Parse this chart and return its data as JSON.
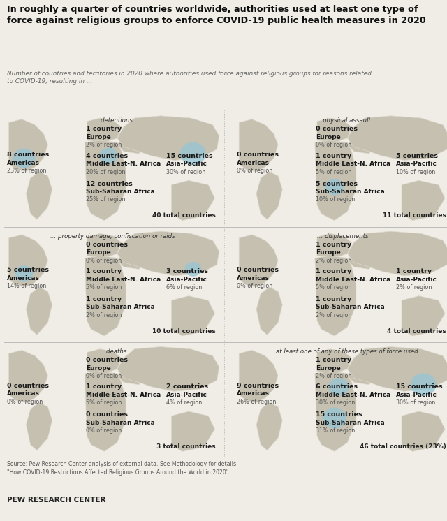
{
  "title": "In roughly a quarter of countries worldwide, authorities used at least one type of\nforce against religious groups to enforce COVID-19 public health measures in 2020",
  "subtitle": "Number of countries and territories in 2020 where authorities used force against religious groups for reasons related\nto COVID-19, resulting in ...",
  "source": "Source: Pew Research Center analysis of external data. See Methodology for details.\n\"How COVID-19 Restrictions Affected Religious Groups Around the World in 2020\"",
  "footer": "PEW RESEARCH CENTER",
  "bg_color": "#f0ede6",
  "map_bg": "#ddd9cf",
  "continent_color": "#c8c3b4",
  "bubble_color": "#92c5d8",
  "text_dark": "#1a1a1a",
  "text_gray": "#555555",
  "divider_color": "#bbbbbb",
  "panels": [
    {
      "title": "... detentions",
      "total": "40 total countries",
      "regions": [
        {
          "name": "Americas",
          "count": "8 countries",
          "pct": "23% of region",
          "bubble": true,
          "bsize": 0.12
        },
        {
          "name": "Europe",
          "count": "1 country",
          "pct": "2% of region",
          "bubble": false,
          "bsize": 0
        },
        {
          "name": "Middle East-N. Africa",
          "count": "4 countries",
          "pct": "20% of region",
          "bubble": true,
          "bsize": 0.1
        },
        {
          "name": "Asia-Pacific",
          "count": "15 countries",
          "pct": "30% of region",
          "bubble": true,
          "bsize": 0.14
        },
        {
          "name": "Sub-Saharan Africa",
          "count": "12 countries",
          "pct": "25% of region",
          "bubble": false,
          "bsize": 0
        }
      ]
    },
    {
      "title": "... physical assault",
      "total": "11 total countries",
      "regions": [
        {
          "name": "Americas",
          "count": "0 countries",
          "pct": "0% of region",
          "bubble": false,
          "bsize": 0
        },
        {
          "name": "Europe",
          "count": "0 countries",
          "pct": "0% of region",
          "bubble": false,
          "bsize": 0
        },
        {
          "name": "Middle East-N. Africa",
          "count": "1 country",
          "pct": "5% of region",
          "bubble": false,
          "bsize": 0
        },
        {
          "name": "Asia-Pacific",
          "count": "5 countries",
          "pct": "10% of region",
          "bubble": false,
          "bsize": 0
        },
        {
          "name": "Sub-Saharan Africa",
          "count": "5 countries",
          "pct": "10% of region",
          "bubble": true,
          "bsize": 0.1
        }
      ]
    },
    {
      "title": "... property damage, confiscation or raids",
      "total": "10 total countries",
      "regions": [
        {
          "name": "Americas",
          "count": "5 countries",
          "pct": "14% of region",
          "bubble": true,
          "bsize": 0.1
        },
        {
          "name": "Europe",
          "count": "0 countries",
          "pct": "0% of region",
          "bubble": false,
          "bsize": 0
        },
        {
          "name": "Middle East-N. Africa",
          "count": "1 country",
          "pct": "5% of region",
          "bubble": false,
          "bsize": 0
        },
        {
          "name": "Asia-Pacific",
          "count": "3 countries",
          "pct": "6% of region",
          "bubble": true,
          "bsize": 0.09
        },
        {
          "name": "Sub-Saharan Africa",
          "count": "1 country",
          "pct": "2% of region",
          "bubble": false,
          "bsize": 0
        }
      ]
    },
    {
      "title": "... displacements",
      "total": "4 total countries",
      "regions": [
        {
          "name": "Americas",
          "count": "0 countries",
          "pct": "0% of region",
          "bubble": false,
          "bsize": 0
        },
        {
          "name": "Europe",
          "count": "1 country",
          "pct": "2% of region",
          "bubble": false,
          "bsize": 0
        },
        {
          "name": "Middle East-N. Africa",
          "count": "1 country",
          "pct": "5% of region",
          "bubble": false,
          "bsize": 0
        },
        {
          "name": "Asia-Pacific",
          "count": "1 country",
          "pct": "2% of region",
          "bubble": false,
          "bsize": 0
        },
        {
          "name": "Sub-Saharan Africa",
          "count": "1 country",
          "pct": "2% of region",
          "bubble": false,
          "bsize": 0
        }
      ]
    },
    {
      "title": "... deaths",
      "total": "3 total countries",
      "regions": [
        {
          "name": "Americas",
          "count": "0 countries",
          "pct": "0% of region",
          "bubble": false,
          "bsize": 0
        },
        {
          "name": "Europe",
          "count": "0 countries",
          "pct": "0% of region",
          "bubble": false,
          "bsize": 0
        },
        {
          "name": "Middle East-N. Africa",
          "count": "1 country",
          "pct": "5% of region",
          "bubble": false,
          "bsize": 0
        },
        {
          "name": "Asia-Pacific",
          "count": "2 countries",
          "pct": "4% of region",
          "bubble": false,
          "bsize": 0
        },
        {
          "name": "Sub-Saharan Africa",
          "count": "0 countries",
          "pct": "0% of region",
          "bubble": false,
          "bsize": 0
        }
      ]
    },
    {
      "title": "... at least one of any of these types of force used",
      "total": "46 total countries (23%)",
      "regions": [
        {
          "name": "Americas",
          "count": "9 countries",
          "pct": "26% of region",
          "bubble": false,
          "bsize": 0
        },
        {
          "name": "Europe",
          "count": "1 country",
          "pct": "2% of region",
          "bubble": false,
          "bsize": 0
        },
        {
          "name": "Middle East-N. Africa",
          "count": "6 countries",
          "pct": "30% of region",
          "bubble": true,
          "bsize": 0.11
        },
        {
          "name": "Asia-Pacific",
          "count": "15 countries",
          "pct": "30% of region",
          "bubble": true,
          "bsize": 0.14
        },
        {
          "name": "Sub-Saharan Africa",
          "count": "15 countries",
          "pct": "31% of region",
          "bubble": true,
          "bsize": 0.13
        }
      ]
    }
  ]
}
